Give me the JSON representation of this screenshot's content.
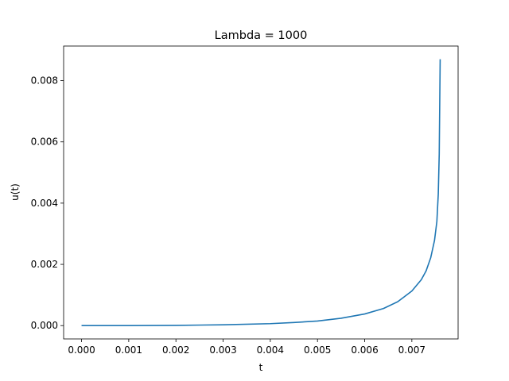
{
  "chart_data": {
    "type": "line",
    "title": "Lambda = 1000",
    "xlabel": "t",
    "ylabel": "u(t)",
    "xlim": [
      -0.00038,
      0.00798
    ],
    "ylim": [
      -0.000435,
      0.00913
    ],
    "grid": false,
    "x_ticks": [
      0.0,
      0.001,
      0.002,
      0.003,
      0.004,
      0.005,
      0.006,
      0.007
    ],
    "x_tick_labels": [
      "0.000",
      "0.001",
      "0.002",
      "0.003",
      "0.004",
      "0.005",
      "0.006",
      "0.007"
    ],
    "y_ticks": [
      0.0,
      0.002,
      0.004,
      0.006,
      0.008
    ],
    "y_tick_labels": [
      "0.000",
      "0.002",
      "0.004",
      "0.006",
      "0.008"
    ],
    "series": [
      {
        "color": "#1f77b4",
        "x": [
          0.0,
          0.001,
          0.002,
          0.003,
          0.004,
          0.0045,
          0.005,
          0.0055,
          0.006,
          0.0064,
          0.0067,
          0.007,
          0.0072,
          0.0073,
          0.0074,
          0.00748,
          0.00753,
          0.00756,
          0.00758,
          0.0076
        ],
        "y": [
          0.0,
          1e-06,
          8e-06,
          2.7e-05,
          6.4e-05,
          0.0001,
          0.00015,
          0.00024,
          0.00038,
          0.00056,
          0.00078,
          0.00113,
          0.0015,
          0.00178,
          0.00222,
          0.00278,
          0.0034,
          0.0043,
          0.0056,
          0.0087
        ]
      }
    ]
  }
}
